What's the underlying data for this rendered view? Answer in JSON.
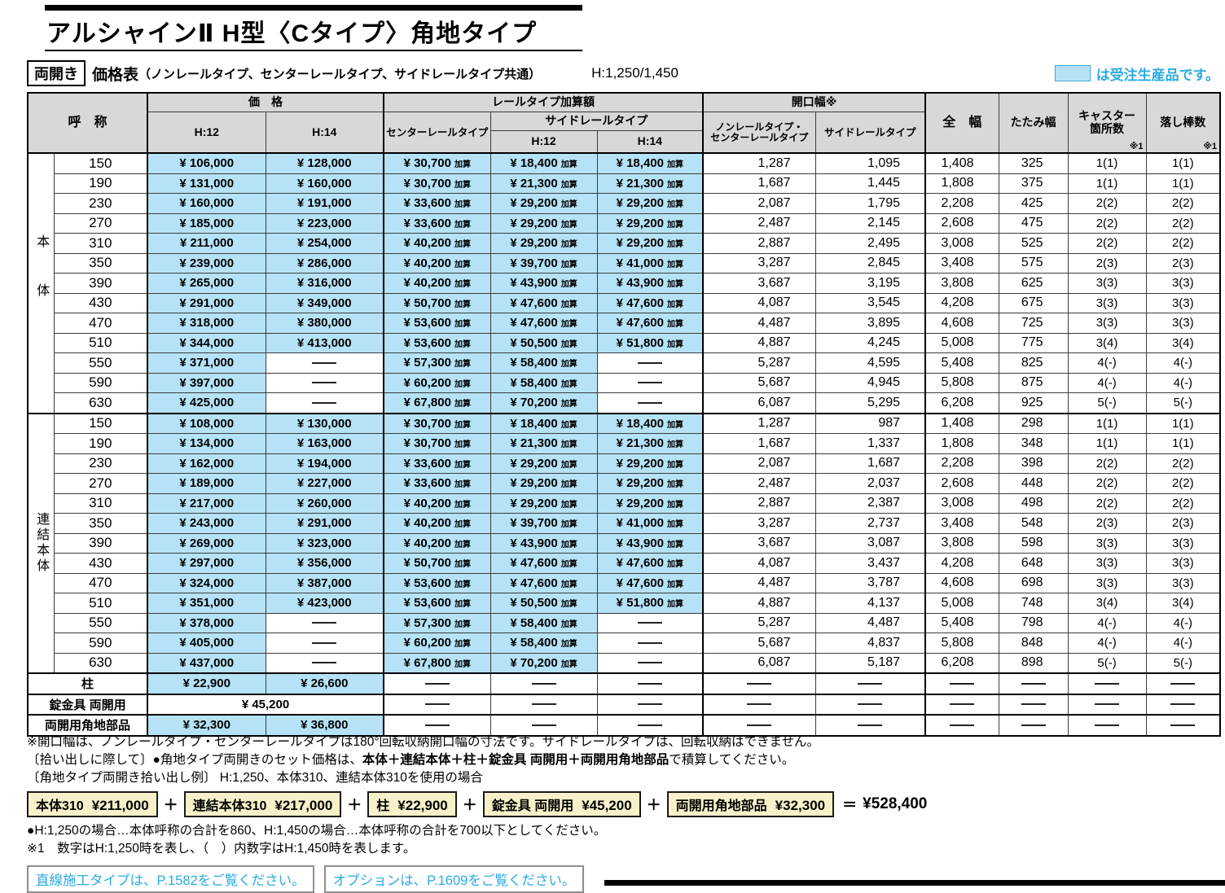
{
  "header": {
    "title": "アルシャインⅡ H型〈Cタイプ〉角地タイプ",
    "badge": "両開き",
    "subtitle_strong": "価格表",
    "subtitle_paren": "（ノンレールタイプ、センターレールタイプ、サイドレールタイプ共通）",
    "height_spec": "H:1,250/1,450",
    "legend_label": "は受注生産品です。",
    "colors": {
      "order_product_blue": "#b5e2f6",
      "accent_blue": "#29abe2"
    }
  },
  "table": {
    "col_headers": {
      "name": "呼　称",
      "price_group": "価　格",
      "h12": "H:12",
      "h14": "H:14",
      "rail_group": "レールタイプ加算額",
      "center_rail": "センターレールタイプ",
      "side_rail_group": "サイドレールタイプ",
      "side_h12": "H:12",
      "side_h14": "H:14",
      "opening_group": "開口幅※",
      "opening_nc1": "ノンレールタイプ・",
      "opening_nc2": "センターレールタイプ",
      "opening_side": "サイドレールタイプ",
      "full_width": "全　幅",
      "folded_width": "たたみ幅",
      "caster_line1": "キャスター",
      "caster_line2": "箇所数",
      "caster_note": "※1",
      "drop_rod": "落し棒数",
      "drop_note": "※1"
    },
    "add_suffix": "加算",
    "dash": "—",
    "sections": [
      {
        "label": "本体",
        "rows": [
          [
            "150",
            "¥ 106,000",
            "¥ 128,000",
            "¥ 30,700",
            "¥ 18,400",
            "¥ 18,400",
            "1,287",
            "1,095",
            "1,408",
            "325",
            "1(1)",
            "1(1)"
          ],
          [
            "190",
            "¥ 131,000",
            "¥ 160,000",
            "¥ 30,700",
            "¥ 21,300",
            "¥ 21,300",
            "1,687",
            "1,445",
            "1,808",
            "375",
            "1(1)",
            "1(1)"
          ],
          [
            "230",
            "¥ 160,000",
            "¥ 191,000",
            "¥ 33,600",
            "¥ 29,200",
            "¥ 29,200",
            "2,087",
            "1,795",
            "2,208",
            "425",
            "2(2)",
            "2(2)"
          ],
          [
            "270",
            "¥ 185,000",
            "¥ 223,000",
            "¥ 33,600",
            "¥ 29,200",
            "¥ 29,200",
            "2,487",
            "2,145",
            "2,608",
            "475",
            "2(2)",
            "2(2)"
          ],
          [
            "310",
            "¥ 211,000",
            "¥ 254,000",
            "¥ 40,200",
            "¥ 29,200",
            "¥ 29,200",
            "2,887",
            "2,495",
            "3,008",
            "525",
            "2(2)",
            "2(2)"
          ],
          [
            "350",
            "¥ 239,000",
            "¥ 286,000",
            "¥ 40,200",
            "¥ 39,700",
            "¥ 41,000",
            "3,287",
            "2,845",
            "3,408",
            "575",
            "2(3)",
            "2(3)"
          ],
          [
            "390",
            "¥ 265,000",
            "¥ 316,000",
            "¥ 40,200",
            "¥ 43,900",
            "¥ 43,900",
            "3,687",
            "3,195",
            "3,808",
            "625",
            "3(3)",
            "3(3)"
          ],
          [
            "430",
            "¥ 291,000",
            "¥ 349,000",
            "¥ 50,700",
            "¥ 47,600",
            "¥ 47,600",
            "4,087",
            "3,545",
            "4,208",
            "675",
            "3(3)",
            "3(3)"
          ],
          [
            "470",
            "¥ 318,000",
            "¥ 380,000",
            "¥ 53,600",
            "¥ 47,600",
            "¥ 47,600",
            "4,487",
            "3,895",
            "4,608",
            "725",
            "3(3)",
            "3(3)"
          ],
          [
            "510",
            "¥ 344,000",
            "¥ 413,000",
            "¥ 53,600",
            "¥ 50,500",
            "¥ 51,800",
            "4,887",
            "4,245",
            "5,008",
            "775",
            "3(4)",
            "3(4)"
          ],
          [
            "550",
            "¥ 371,000",
            "—",
            "¥ 57,300",
            "¥ 58,400",
            "—",
            "5,287",
            "4,595",
            "5,408",
            "825",
            "4(-)",
            "4(-)"
          ],
          [
            "590",
            "¥ 397,000",
            "—",
            "¥ 60,200",
            "¥ 58,400",
            "—",
            "5,687",
            "4,945",
            "5,808",
            "875",
            "4(-)",
            "4(-)"
          ],
          [
            "630",
            "¥ 425,000",
            "—",
            "¥ 67,800",
            "¥ 70,200",
            "—",
            "6,087",
            "5,295",
            "6,208",
            "925",
            "5(-)",
            "5(-)"
          ]
        ]
      },
      {
        "label": "連結本体",
        "rows": [
          [
            "150",
            "¥ 108,000",
            "¥ 130,000",
            "¥ 30,700",
            "¥ 18,400",
            "¥ 18,400",
            "1,287",
            "987",
            "1,408",
            "298",
            "1(1)",
            "1(1)"
          ],
          [
            "190",
            "¥ 134,000",
            "¥ 163,000",
            "¥ 30,700",
            "¥ 21,300",
            "¥ 21,300",
            "1,687",
            "1,337",
            "1,808",
            "348",
            "1(1)",
            "1(1)"
          ],
          [
            "230",
            "¥ 162,000",
            "¥ 194,000",
            "¥ 33,600",
            "¥ 29,200",
            "¥ 29,200",
            "2,087",
            "1,687",
            "2,208",
            "398",
            "2(2)",
            "2(2)"
          ],
          [
            "270",
            "¥ 189,000",
            "¥ 227,000",
            "¥ 33,600",
            "¥ 29,200",
            "¥ 29,200",
            "2,487",
            "2,037",
            "2,608",
            "448",
            "2(2)",
            "2(2)"
          ],
          [
            "310",
            "¥ 217,000",
            "¥ 260,000",
            "¥ 40,200",
            "¥ 29,200",
            "¥ 29,200",
            "2,887",
            "2,387",
            "3,008",
            "498",
            "2(2)",
            "2(2)"
          ],
          [
            "350",
            "¥ 243,000",
            "¥ 291,000",
            "¥ 40,200",
            "¥ 39,700",
            "¥ 41,000",
            "3,287",
            "2,737",
            "3,408",
            "548",
            "2(3)",
            "2(3)"
          ],
          [
            "390",
            "¥ 269,000",
            "¥ 323,000",
            "¥ 40,200",
            "¥ 43,900",
            "¥ 43,900",
            "3,687",
            "3,087",
            "3,808",
            "598",
            "3(3)",
            "3(3)"
          ],
          [
            "430",
            "¥ 297,000",
            "¥ 356,000",
            "¥ 50,700",
            "¥ 47,600",
            "¥ 47,600",
            "4,087",
            "3,437",
            "4,208",
            "648",
            "3(3)",
            "3(3)"
          ],
          [
            "470",
            "¥ 324,000",
            "¥ 387,000",
            "¥ 53,600",
            "¥ 47,600",
            "¥ 47,600",
            "4,487",
            "3,787",
            "4,608",
            "698",
            "3(3)",
            "3(3)"
          ],
          [
            "510",
            "¥ 351,000",
            "¥ 423,000",
            "¥ 53,600",
            "¥ 50,500",
            "¥ 51,800",
            "4,887",
            "4,137",
            "5,008",
            "748",
            "3(4)",
            "3(4)"
          ],
          [
            "550",
            "¥ 378,000",
            "—",
            "¥ 57,300",
            "¥ 58,400",
            "—",
            "5,287",
            "4,487",
            "5,408",
            "798",
            "4(-)",
            "4(-)"
          ],
          [
            "590",
            "¥ 405,000",
            "—",
            "¥ 60,200",
            "¥ 58,400",
            "—",
            "5,687",
            "4,837",
            "5,808",
            "848",
            "4(-)",
            "4(-)"
          ],
          [
            "630",
            "¥ 437,000",
            "—",
            "¥ 67,800",
            "¥ 70,200",
            "—",
            "6,087",
            "5,187",
            "6,208",
            "898",
            "5(-)",
            "5(-)"
          ]
        ]
      }
    ],
    "extra_rows": [
      {
        "name": "柱",
        "h12": "¥ 22,900",
        "h14": "¥ 26,600"
      },
      {
        "name": "錠金具 両開用",
        "merged_price": "¥ 45,200"
      },
      {
        "name": "両開用角地部品",
        "h12": "¥ 32,300",
        "h14": "¥ 36,800"
      }
    ]
  },
  "notes": {
    "note1": "※開口幅は、ノンレールタイプ・センターレールタイプは180°回転収納開口幅の寸法です。サイドレールタイプは、回転収納はできません。",
    "note2_prefix": "〔拾い出しに際して〕●角地タイプ両開きのセット価格は、",
    "note2_bold": "本体＋連結本体＋柱＋錠金具 両開用＋両開用角地部品",
    "note2_suffix": "で積算してください。",
    "note3": "〔角地タイプ両開き拾い出し例〕 H:1,250、本体310、連結本体310を使用の場合",
    "note4": "●H:1,250の場合…本体呼称の合計を860、H:1,450の場合…本体呼称の合計を700以下としてください。",
    "note5": "※1　数字はH:1,250時を表し、（　）内数字はH:1,450時を表します。"
  },
  "formula": {
    "items": [
      {
        "label": "本体310",
        "price": "¥211,000"
      },
      {
        "label": "連結本体310",
        "price": "¥217,000"
      },
      {
        "label": "柱",
        "price": "¥22,900"
      },
      {
        "label": "錠金具 両開用",
        "price": "¥45,200"
      },
      {
        "label": "両開用角地部品",
        "price": "¥32,300"
      }
    ],
    "plus": "＋",
    "equals": "＝",
    "total": "¥528,400"
  },
  "links": [
    {
      "text": "直線施工タイプは、P.1582をご覧ください。"
    },
    {
      "text": "オプションは、P.1609をご覧ください。"
    }
  ]
}
